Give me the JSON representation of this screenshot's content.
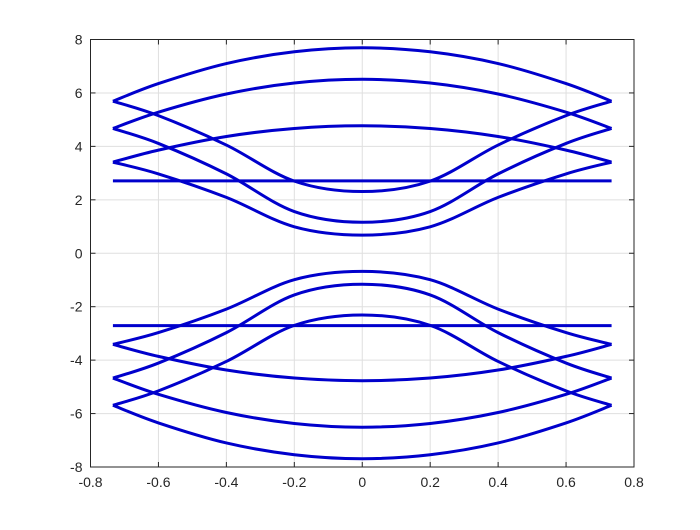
{
  "chart_data": {
    "type": "line",
    "title": "",
    "xlabel": "",
    "ylabel": "",
    "xlim": [
      -0.8,
      0.8
    ],
    "ylim": [
      -8,
      8
    ],
    "xticks": [
      "-0.8",
      "-0.6",
      "-0.4",
      "-0.2",
      "0",
      "0.2",
      "0.4",
      "0.6",
      "0.8"
    ],
    "yticks": [
      "-8",
      "-6",
      "-4",
      "-2",
      "0",
      "2",
      "4",
      "6",
      "8"
    ],
    "grid": true,
    "line_color": "#0000cc",
    "x": [
      -0.734,
      -0.6,
      -0.4,
      -0.2,
      0,
      0.2,
      0.4,
      0.6,
      0.734
    ],
    "series": [
      {
        "values": [
          5.69,
          6.35,
          7.1,
          7.54,
          7.69,
          7.54,
          7.1,
          6.35,
          5.69
        ]
      },
      {
        "values": [
          4.67,
          5.28,
          5.96,
          6.37,
          6.51,
          6.37,
          5.96,
          5.28,
          4.67
        ]
      },
      {
        "values": [
          3.41,
          3.86,
          4.37,
          4.67,
          4.77,
          4.67,
          4.37,
          3.86,
          3.41
        ]
      },
      {
        "values": [
          2.71,
          2.71,
          2.71,
          2.71,
          2.71,
          2.71,
          2.71,
          2.71,
          2.71
        ]
      },
      {
        "values": [
          5.69,
          5.15,
          4.05,
          2.7,
          2.31,
          2.7,
          4.05,
          5.15,
          5.69
        ]
      },
      {
        "values": [
          4.67,
          4.11,
          2.97,
          1.56,
          1.16,
          1.56,
          2.97,
          4.11,
          4.67
        ]
      },
      {
        "values": [
          3.41,
          2.97,
          2.09,
          0.99,
          0.68,
          0.99,
          2.09,
          2.97,
          3.41
        ]
      },
      {
        "values": [
          -5.69,
          -6.35,
          -7.1,
          -7.54,
          -7.69,
          -7.54,
          -7.1,
          -6.35,
          -5.69
        ]
      },
      {
        "values": [
          -4.67,
          -5.28,
          -5.96,
          -6.37,
          -6.51,
          -6.37,
          -5.96,
          -5.28,
          -4.67
        ]
      },
      {
        "values": [
          -3.41,
          -3.86,
          -4.37,
          -4.67,
          -4.77,
          -4.67,
          -4.37,
          -3.86,
          -3.41
        ]
      },
      {
        "values": [
          -2.71,
          -2.71,
          -2.71,
          -2.71,
          -2.71,
          -2.71,
          -2.71,
          -2.71,
          -2.71
        ]
      },
      {
        "values": [
          -5.69,
          -5.15,
          -4.05,
          -2.7,
          -2.31,
          -2.7,
          -4.05,
          -5.15,
          -5.69
        ]
      },
      {
        "values": [
          -4.67,
          -4.11,
          -2.97,
          -1.56,
          -1.16,
          -1.56,
          -2.97,
          -4.11,
          -4.67
        ]
      },
      {
        "values": [
          -3.41,
          -2.97,
          -2.09,
          -0.99,
          -0.68,
          -0.99,
          -2.09,
          -2.97,
          -3.41
        ]
      }
    ]
  }
}
